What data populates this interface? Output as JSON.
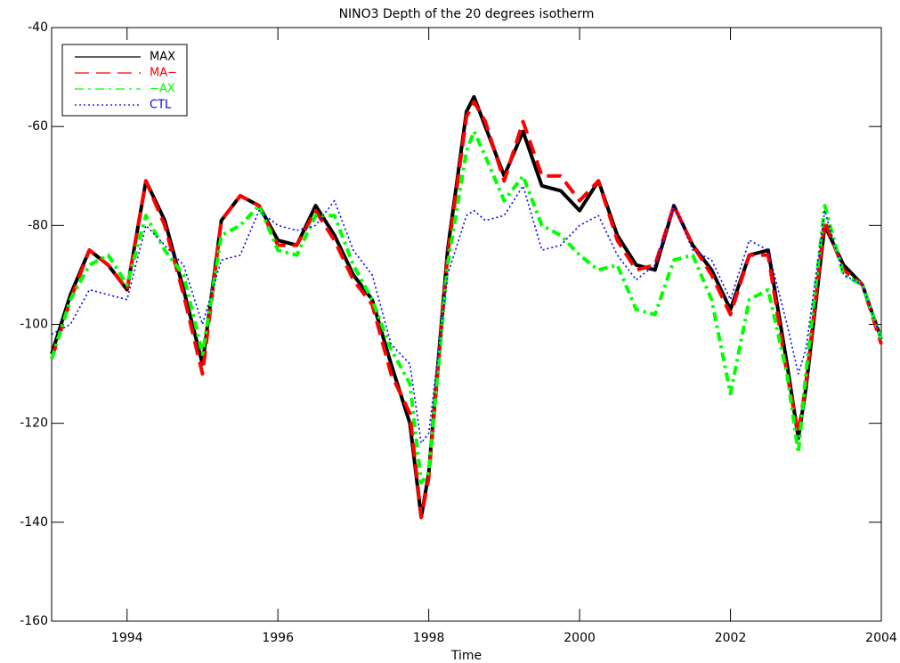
{
  "chart_data": {
    "type": "line",
    "title": "NINO3 Depth of the 20 degrees isotherm",
    "x_label": "Time",
    "x": [
      1993,
      1993.25,
      1993.5,
      1993.75,
      1994,
      1994.25,
      1994.5,
      1994.75,
      1995,
      1995.25,
      1995.5,
      1995.75,
      1996,
      1996.25,
      1996.5,
      1996.75,
      1997,
      1997.25,
      1997.5,
      1997.75,
      1997.9,
      1998,
      1998.25,
      1998.5,
      1998.6,
      1998.75,
      1999,
      1999.25,
      1999.5,
      1999.75,
      2000,
      2000.25,
      2000.5,
      2000.75,
      2001,
      2001.25,
      2001.5,
      2001.75,
      2002,
      2002.25,
      2002.5,
      2002.75,
      2002.9,
      2003,
      2003.25,
      2003.5,
      2003.75,
      2004
    ],
    "series": [
      {
        "name": "MAX",
        "color": "#000000",
        "style": "solid",
        "values": [
          -106,
          -94,
          -85,
          -88,
          -93,
          -71,
          -79,
          -93,
          -108,
          -79,
          -74,
          -76,
          -83,
          -84,
          -76,
          -82,
          -90,
          -95,
          -108,
          -120,
          -139,
          -130,
          -85,
          -57,
          -54,
          -60,
          -70,
          -61,
          -72,
          -73,
          -77,
          -71,
          -82,
          -88,
          -89,
          -76,
          -84,
          -89,
          -97,
          -86,
          -85,
          -108,
          -123,
          -113,
          -80,
          -88,
          -92,
          -103
        ]
      },
      {
        "name": "MA−",
        "color": "#ff0000",
        "style": "dashed",
        "values": [
          -107,
          -95,
          -85,
          -88,
          -93,
          -71,
          -80,
          -94,
          -110,
          -79,
          -74,
          -76,
          -84,
          -84,
          -77,
          -83,
          -91,
          -96,
          -110,
          -118,
          -139,
          -131,
          -86,
          -58,
          -55,
          -59,
          -71,
          -59,
          -70,
          -70,
          -75,
          -71,
          -83,
          -89,
          -88,
          -76,
          -84,
          -90,
          -98,
          -86,
          -86,
          -110,
          -122,
          -112,
          -79,
          -89,
          -92,
          -104
        ]
      },
      {
        "name": "−AX",
        "color": "#00ff00",
        "style": "dashdot",
        "values": [
          -107,
          -95,
          -88,
          -86,
          -92,
          -78,
          -85,
          -90,
          -106,
          -82,
          -80,
          -76,
          -85,
          -86,
          -78,
          -78,
          -88,
          -95,
          -105,
          -112,
          -132,
          -130,
          -88,
          -65,
          -61,
          -66,
          -75,
          -70,
          -80,
          -82,
          -86,
          -89,
          -88,
          -97,
          -98,
          -87,
          -86,
          -95,
          -114,
          -95,
          -93,
          -110,
          -126,
          -110,
          -76,
          -90,
          -92,
          -103
        ]
      },
      {
        "name": "CTL",
        "color": "#0000ff",
        "style": "dotted",
        "values": [
          -102,
          -100,
          -93,
          -94,
          -95,
          -80,
          -84,
          -88,
          -100,
          -87,
          -86,
          -77,
          -80,
          -81,
          -80,
          -75,
          -85,
          -90,
          -104,
          -108,
          -124,
          -122,
          -90,
          -78,
          -77,
          -79,
          -78,
          -72,
          -85,
          -84,
          -80,
          -78,
          -86,
          -91,
          -88,
          -76,
          -85,
          -87,
          -95,
          -83,
          -85,
          -100,
          -110,
          -105,
          -77,
          -90,
          -92,
          -103
        ]
      }
    ],
    "xlim": [
      1993,
      2004
    ],
    "xticks": [
      1994,
      1996,
      1998,
      2000,
      2002,
      2004
    ],
    "ylim": [
      -160,
      -40
    ],
    "yticks": [
      -160,
      -140,
      -120,
      -100,
      -80,
      -60,
      -40
    ],
    "legend": "upper left"
  }
}
